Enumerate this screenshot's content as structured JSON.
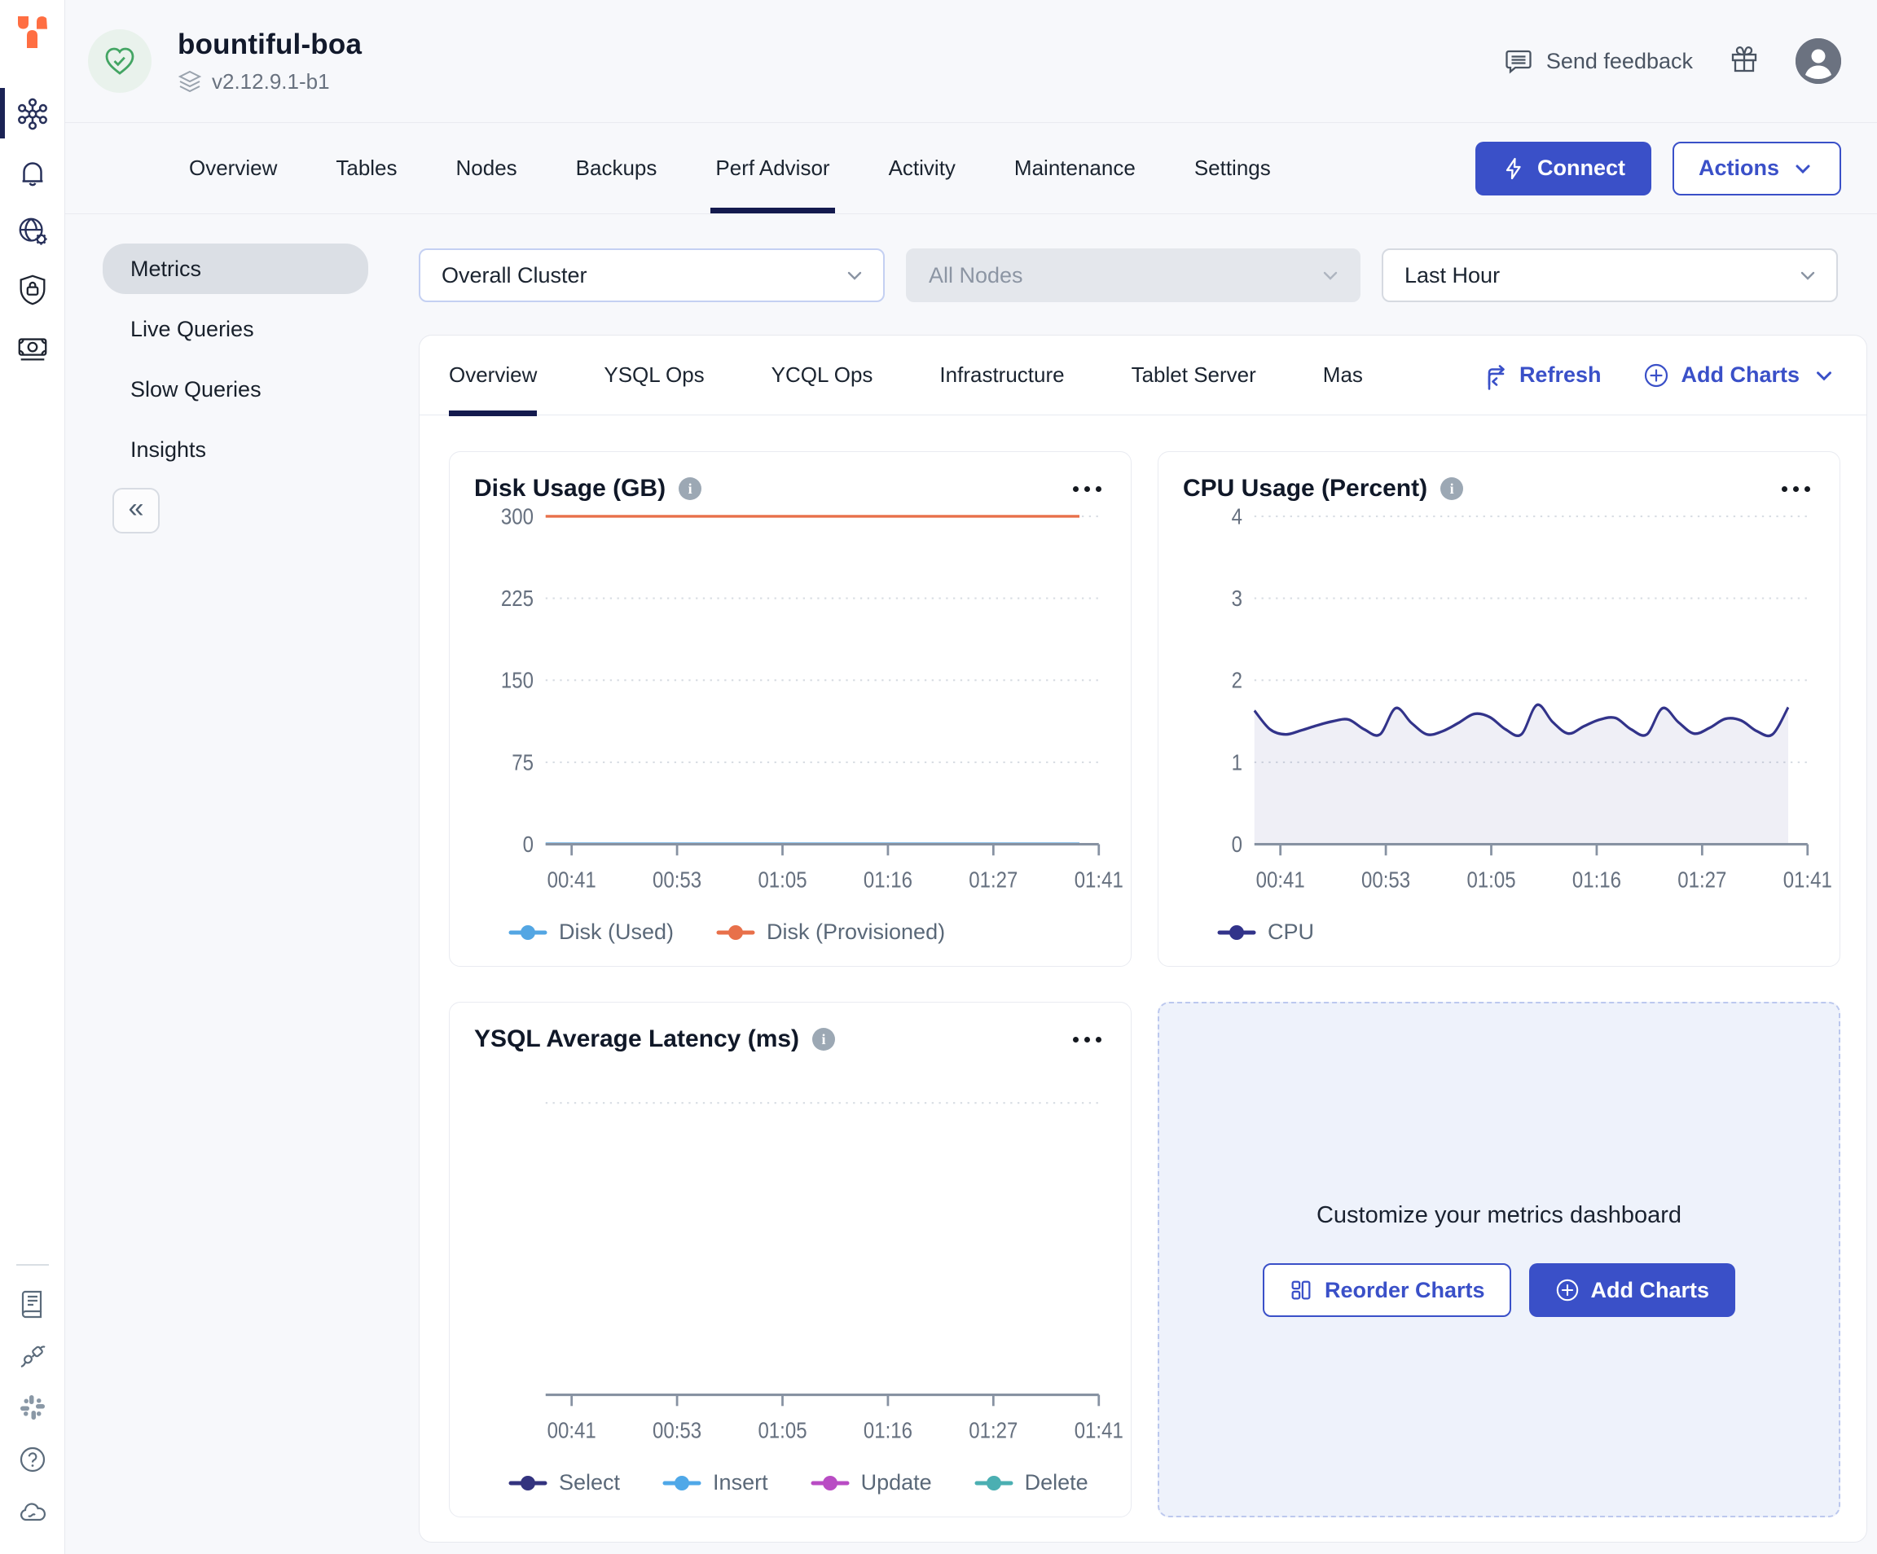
{
  "colors": {
    "accent_blue": "#3A50C8",
    "active_underline": "#141A4E",
    "logo_orange": "#FF6E42",
    "success_green": "#43A563",
    "chart_navy": "#32338A",
    "chart_blue": "#53A6E3",
    "chart_orange": "#E8704A",
    "chart_magenta": "#B94CC4",
    "chart_teal": "#4BAFB2",
    "grid_gray": "#D8DDE3",
    "axis_gray": "#8792A2"
  },
  "sidebar": {
    "rail": [
      {
        "name": "clusters",
        "active": true
      },
      {
        "name": "alerts",
        "active": false
      },
      {
        "name": "network-settings",
        "active": false
      },
      {
        "name": "security",
        "active": false
      },
      {
        "name": "billing",
        "active": false
      }
    ],
    "footer": [
      "documentation",
      "integrations",
      "slack",
      "help",
      "cloud-status"
    ]
  },
  "header": {
    "cluster_name": "bountiful-boa",
    "version": "v2.12.9.1-b1",
    "send_feedback_label": "Send feedback"
  },
  "tabs": {
    "items": [
      {
        "label": "Overview",
        "active": false
      },
      {
        "label": "Tables",
        "active": false
      },
      {
        "label": "Nodes",
        "active": false
      },
      {
        "label": "Backups",
        "active": false
      },
      {
        "label": "Perf Advisor",
        "active": true
      },
      {
        "label": "Activity",
        "active": false
      },
      {
        "label": "Maintenance",
        "active": false
      },
      {
        "label": "Settings",
        "active": false
      }
    ],
    "connect_label": "Connect",
    "actions_label": "Actions"
  },
  "subnav": {
    "items": [
      {
        "label": "Metrics",
        "active": true
      },
      {
        "label": "Live Queries",
        "active": false
      },
      {
        "label": "Slow Queries",
        "active": false
      },
      {
        "label": "Insights",
        "active": false
      }
    ],
    "collapse_label": "«"
  },
  "filters": {
    "scope": {
      "value": "Overall Cluster",
      "disabled": false
    },
    "nodes": {
      "value": "All Nodes",
      "disabled": true
    },
    "time": {
      "value": "Last Hour",
      "disabled": false
    }
  },
  "panel": {
    "tabs": [
      {
        "label": "Overview",
        "active": true,
        "truncated": false
      },
      {
        "label": "YSQL Ops",
        "active": false,
        "truncated": false
      },
      {
        "label": "YCQL Ops",
        "active": false,
        "truncated": false
      },
      {
        "label": "Infrastructure",
        "active": false,
        "truncated": false
      },
      {
        "label": "Tablet Server",
        "active": false,
        "truncated": false
      },
      {
        "label": "Mas",
        "active": false,
        "truncated": true
      }
    ],
    "refresh_label": "Refresh",
    "add_charts_label": "Add Charts"
  },
  "customize": {
    "title": "Customize your metrics dashboard",
    "reorder_label": "Reorder Charts",
    "add_label": "Add Charts"
  },
  "chart_data": [
    {
      "type": "line",
      "title": "Disk Usage (GB)",
      "xlabel": "",
      "ylabel": "",
      "ylim": [
        0,
        300
      ],
      "yticks": [
        0,
        75,
        150,
        225,
        300
      ],
      "x": [
        "00:41",
        "00:53",
        "01:05",
        "01:16",
        "01:27",
        "01:41"
      ],
      "grid": "dotted-horizontal",
      "legend_position": "bottom",
      "series": [
        {
          "name": "Disk (Used)",
          "color": "#53A6E3",
          "fill": false,
          "values": [
            0.4,
            0.4,
            0.4,
            0.4,
            0.4,
            0.4,
            0.4,
            0.4,
            0.4,
            0.4,
            0.4,
            0.4,
            0.4
          ]
        },
        {
          "name": "Disk (Provisioned)",
          "color": "#E8704A",
          "fill": false,
          "values": [
            300,
            300,
            300,
            300,
            300,
            300,
            300,
            300,
            300,
            300,
            300,
            300,
            300
          ]
        }
      ]
    },
    {
      "type": "area",
      "title": "CPU Usage (Percent)",
      "xlabel": "",
      "ylabel": "",
      "ylim": [
        0,
        4
      ],
      "yticks": [
        0,
        1,
        2,
        3,
        4
      ],
      "x": [
        "00:41",
        "00:53",
        "01:05",
        "01:16",
        "01:27",
        "01:41"
      ],
      "grid": "dotted-horizontal",
      "legend_position": "bottom",
      "series": [
        {
          "name": "CPU",
          "color": "#32338A",
          "fill": true,
          "values": [
            1.63,
            1.4,
            1.34,
            1.39,
            1.45,
            1.5,
            1.52,
            1.4,
            1.34,
            1.66,
            1.48,
            1.34,
            1.38,
            1.48,
            1.59,
            1.55,
            1.4,
            1.34,
            1.7,
            1.49,
            1.35,
            1.44,
            1.52,
            1.54,
            1.4,
            1.34,
            1.66,
            1.49,
            1.35,
            1.42,
            1.53,
            1.51,
            1.38,
            1.34,
            1.67
          ]
        }
      ]
    },
    {
      "type": "line",
      "title": "YSQL Average Latency (ms)",
      "xlabel": "",
      "ylabel": "",
      "ylim": [
        0,
        1
      ],
      "yticks": [],
      "top_gridline": true,
      "x": [
        "00:41",
        "00:53",
        "01:05",
        "01:16",
        "01:27",
        "01:41"
      ],
      "grid": "dotted-horizontal",
      "legend_position": "bottom",
      "series": [
        {
          "name": "Select",
          "color": "#33337F",
          "fill": false,
          "values": []
        },
        {
          "name": "Insert",
          "color": "#4FA8E8",
          "fill": false,
          "values": []
        },
        {
          "name": "Update",
          "color": "#B94CC4",
          "fill": false,
          "values": []
        },
        {
          "name": "Delete",
          "color": "#4BAFB2",
          "fill": false,
          "values": []
        }
      ]
    }
  ]
}
